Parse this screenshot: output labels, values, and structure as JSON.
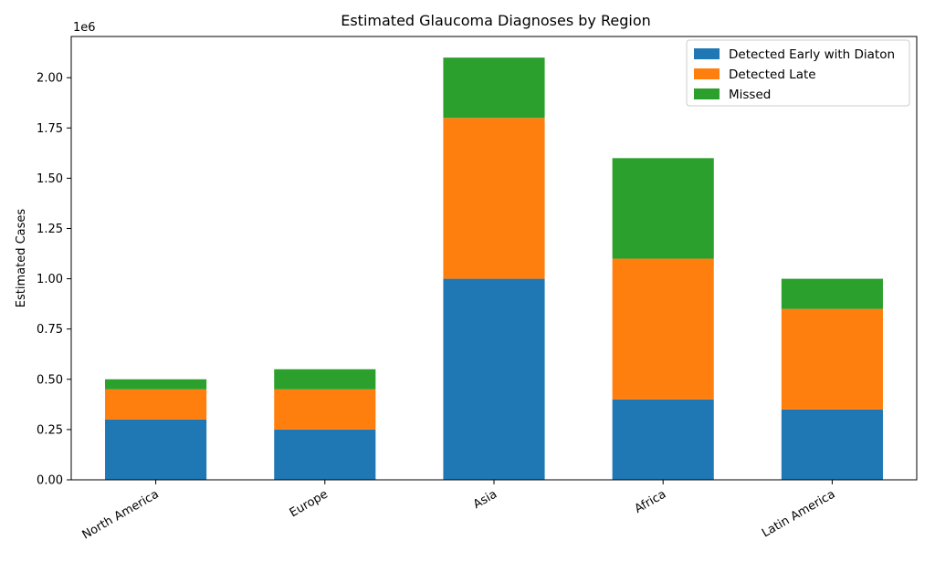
{
  "chart_data": {
    "type": "bar",
    "stacked": true,
    "title": "Estimated Glaucoma Diagnoses by Region",
    "xlabel": "",
    "ylabel": "Estimated Cases",
    "y_offset_label": "1e6",
    "categories": [
      "North America",
      "Europe",
      "Asia",
      "Africa",
      "Latin America"
    ],
    "series": [
      {
        "name": "Detected Early with Diaton",
        "color": "#1f77b4",
        "values": [
          300000,
          250000,
          1000000,
          400000,
          350000
        ]
      },
      {
        "name": "Detected Late",
        "color": "#ff7f0e",
        "values": [
          150000,
          200000,
          800000,
          700000,
          500000
        ]
      },
      {
        "name": "Missed",
        "color": "#2ca02c",
        "values": [
          50000,
          100000,
          300000,
          500000,
          150000
        ]
      }
    ],
    "ylim": [
      0,
      2205000
    ],
    "yticks": [
      0,
      250000,
      500000,
      750000,
      1000000,
      1250000,
      1500000,
      1750000,
      2000000
    ],
    "ytick_labels": [
      "0.00",
      "0.25",
      "0.50",
      "0.75",
      "1.00",
      "1.25",
      "1.50",
      "1.75",
      "2.00"
    ],
    "grid": false,
    "legend_position": "top-right"
  }
}
